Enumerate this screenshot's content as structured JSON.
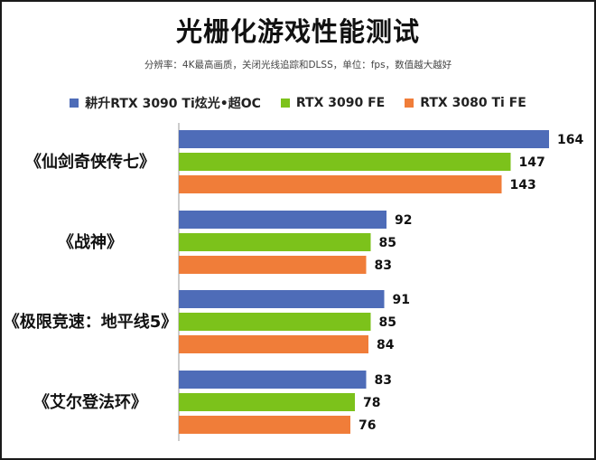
{
  "title": "光栅化游戏性能测试",
  "subtitle": "分辨率：4K最高画质，关闭光线追踪和DLSS，单位：fps，数值越大越好",
  "chart_data": {
    "type": "bar",
    "orientation": "horizontal",
    "categories": [
      "《仙剑奇侠传七》",
      "《战神》",
      "《极限竞速：地平线5》",
      "《艾尔登法环》"
    ],
    "series": [
      {
        "name": "耕升RTX 3090 Ti炫光•超OC",
        "color": "#4E6CB8",
        "values": [
          164,
          92,
          91,
          83
        ]
      },
      {
        "name": "RTX 3090 FE",
        "color": "#7CC21B",
        "values": [
          147,
          85,
          85,
          78
        ]
      },
      {
        "name": "RTX 3080 Ti FE",
        "color": "#F07D39",
        "values": [
          143,
          83,
          84,
          76
        ]
      }
    ],
    "xlim": [
      0,
      164
    ],
    "grid": false,
    "legend_position": "top"
  }
}
